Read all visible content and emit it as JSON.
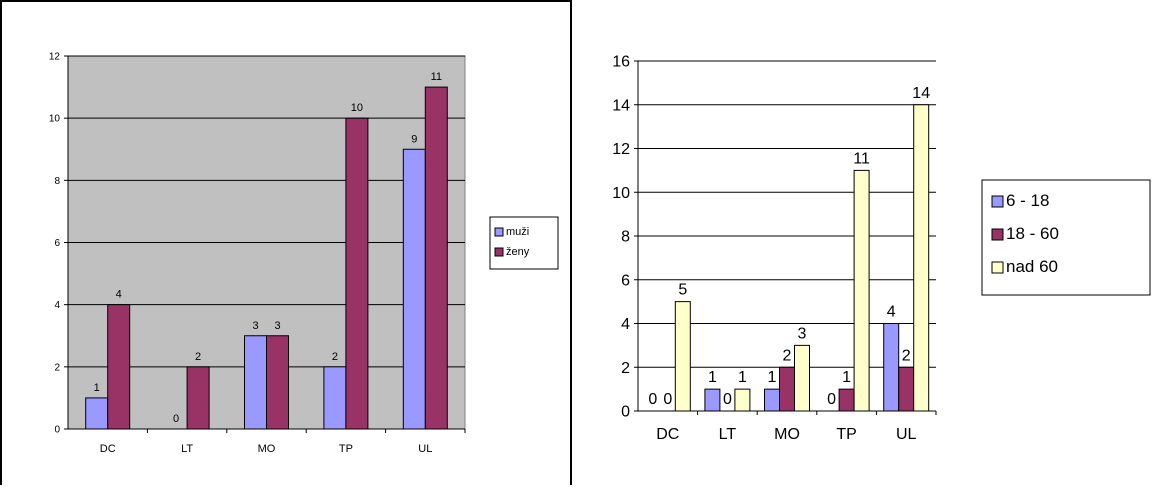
{
  "chart_data": [
    {
      "type": "bar",
      "categories": [
        "DC",
        "LT",
        "MO",
        "TP",
        "UL"
      ],
      "series": [
        {
          "name": "muži",
          "values": [
            1,
            0,
            3,
            2,
            9
          ],
          "color": "#9999ff"
        },
        {
          "name": "ženy",
          "values": [
            4,
            2,
            3,
            10,
            11
          ],
          "color": "#993366"
        }
      ],
      "ylim": [
        0,
        12
      ],
      "yticks": [
        0,
        2,
        4,
        6,
        8,
        10,
        12
      ],
      "grid": true,
      "plot_background": "#c0c0c0",
      "legend_position": "right",
      "title": "",
      "xlabel": "",
      "ylabel": ""
    },
    {
      "type": "bar",
      "categories": [
        "DC",
        "LT",
        "MO",
        "TP",
        "UL"
      ],
      "series": [
        {
          "name": "6 - 18",
          "values": [
            0,
            1,
            1,
            0,
            4
          ],
          "color": "#9999ff"
        },
        {
          "name": "18 - 60",
          "values": [
            0,
            0,
            2,
            1,
            2
          ],
          "color": "#993366"
        },
        {
          "name": "nad 60",
          "values": [
            5,
            1,
            3,
            11,
            14
          ],
          "color": "#ffffcc"
        }
      ],
      "ylim": [
        0,
        16
      ],
      "yticks": [
        0,
        2,
        4,
        6,
        8,
        10,
        12,
        14,
        16
      ],
      "grid": true,
      "plot_background": "#ffffff",
      "legend_position": "right",
      "title": "",
      "xlabel": "",
      "ylabel": ""
    }
  ]
}
